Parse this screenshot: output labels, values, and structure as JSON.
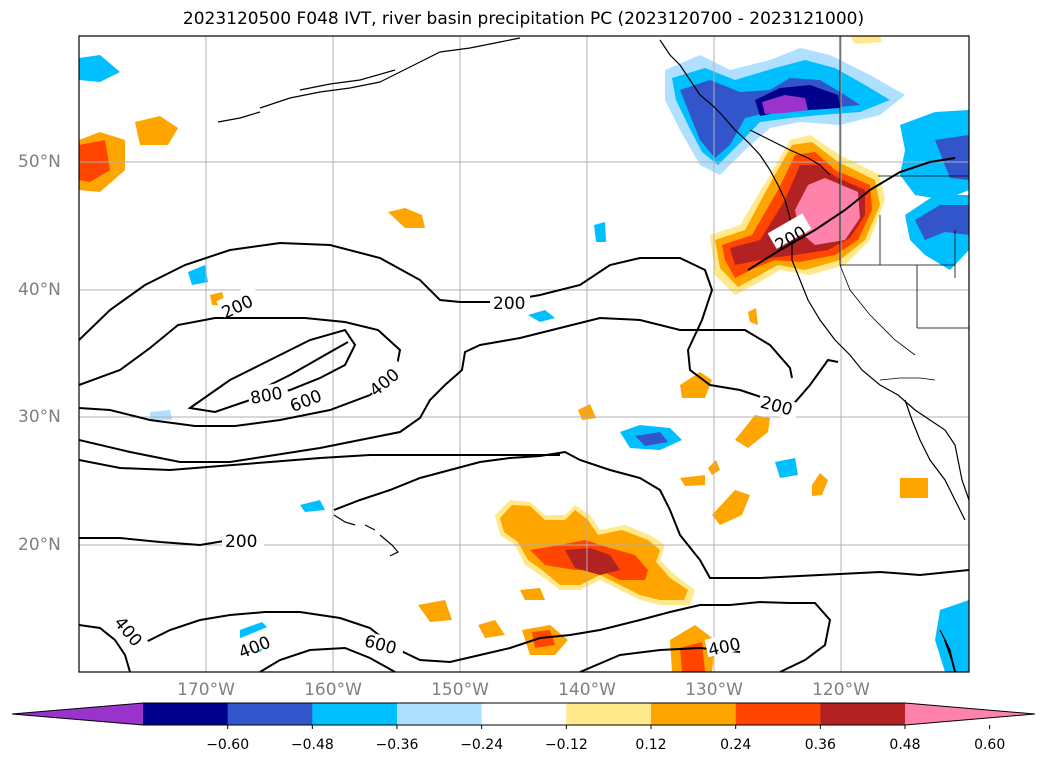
{
  "title": "2023120500 F048 IVT, river basin precipitation PC (2023120700 - 2023121000)",
  "lat_labels": [
    "50°N",
    "40°N",
    "30°N",
    "20°N"
  ],
  "lon_labels": [
    "170°W",
    "160°W",
    "150°W",
    "140°W",
    "130°W",
    "120°W"
  ],
  "contour_labels": [
    "200",
    "200",
    "200",
    "200",
    "200",
    "800",
    "600",
    "400",
    "400",
    "400",
    "600",
    "400"
  ],
  "colorbar": {
    "ticks": [
      "−0.60",
      "−0.48",
      "−0.36",
      "−0.24",
      "−0.12",
      "0.12",
      "0.24",
      "0.36",
      "0.48",
      "0.60"
    ],
    "colors": [
      "#9933cc",
      "#00008b",
      "#3355cc",
      "#00bfff",
      "#b0e0ff",
      "#ffffff",
      "#ffe98a",
      "#ffa500",
      "#ff4500",
      "#b22222",
      "#ff82aa"
    ],
    "extend": "both"
  },
  "styles": {
    "grid_color": "#b0b0b0",
    "axis_label_color": "#808080"
  }
}
